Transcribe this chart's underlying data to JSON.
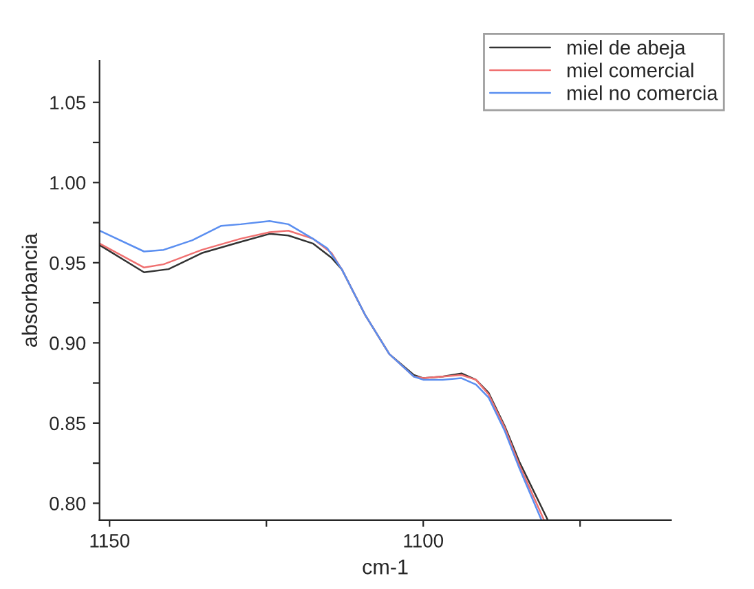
{
  "chart_data": {
    "type": "line",
    "xlabel": "cm-1",
    "ylabel": "absorbancia",
    "xlim": [
      1151.6,
      1060.5
    ],
    "ylim": [
      0.7895,
      1.076
    ],
    "xticks": [
      1150,
      {
        "value": 1125,
        "label": null
      },
      1100,
      {
        "value": 1075,
        "label": null
      }
    ],
    "yticks": [
      {
        "value": 0.8,
        "label": "0.80"
      },
      {
        "value": 0.825,
        "label": null
      },
      0.85,
      {
        "value": 0.875,
        "label": null
      },
      {
        "value": 0.9,
        "label": "0.90"
      },
      {
        "value": 0.925,
        "label": null
      },
      0.95,
      {
        "value": 0.975,
        "label": null
      },
      {
        "value": 1.0,
        "label": "1.00"
      },
      {
        "value": 1.025,
        "label": null
      },
      1.05
    ],
    "grid": false,
    "legend": "top right",
    "line_style": "solid",
    "marker": "none",
    "series": [
      {
        "name": "miel de abeja",
        "color": "#333333",
        "x": [
          1151.6,
          1144.5,
          1140.6,
          1135.3,
          1129.1,
          1124.5,
          1121.5,
          1117.6,
          1114.6,
          1113.0,
          1109.2,
          1105.4,
          1101.5,
          1100,
          1096.9,
          1093.9,
          1091.6,
          1089.6,
          1087.0,
          1084.7,
          1080.2
        ],
        "values": [
          0.961,
          0.944,
          0.946,
          0.956,
          0.963,
          0.968,
          0.967,
          0.962,
          0.953,
          0.946,
          0.917,
          0.893,
          0.88,
          0.878,
          0.879,
          0.881,
          0.877,
          0.869,
          0.848,
          0.826,
          0.79
        ]
      },
      {
        "name": "miel comercial",
        "color": "#f07070",
        "x": [
          1151.6,
          1144.5,
          1141.4,
          1135.3,
          1129.1,
          1124.5,
          1121.5,
          1117.6,
          1114.6,
          1113.0,
          1109.2,
          1105.4,
          1101.5,
          1100,
          1096.9,
          1093.9,
          1091.6,
          1089.6,
          1087.0,
          1084.7,
          1080.8
        ],
        "values": [
          0.962,
          0.947,
          0.949,
          0.958,
          0.965,
          0.969,
          0.97,
          0.965,
          0.956,
          0.946,
          0.917,
          0.893,
          0.879,
          0.878,
          0.879,
          0.88,
          0.877,
          0.868,
          0.847,
          0.824,
          0.79
        ]
      },
      {
        "name": "miel no comercia",
        "color": "#5a8ef0",
        "x": [
          1151.6,
          1144.5,
          1141.4,
          1136.8,
          1132.2,
          1129.1,
          1124.5,
          1121.5,
          1117.6,
          1115.3,
          1113.0,
          1109.2,
          1105.4,
          1101.5,
          1100,
          1096.9,
          1093.9,
          1091.6,
          1089.6,
          1087.0,
          1084.7,
          1081.2
        ],
        "values": [
          0.97,
          0.957,
          0.958,
          0.964,
          0.973,
          0.974,
          0.976,
          0.974,
          0.965,
          0.959,
          0.946,
          0.917,
          0.893,
          0.879,
          0.877,
          0.877,
          0.878,
          0.874,
          0.866,
          0.845,
          0.822,
          0.79
        ]
      }
    ]
  }
}
